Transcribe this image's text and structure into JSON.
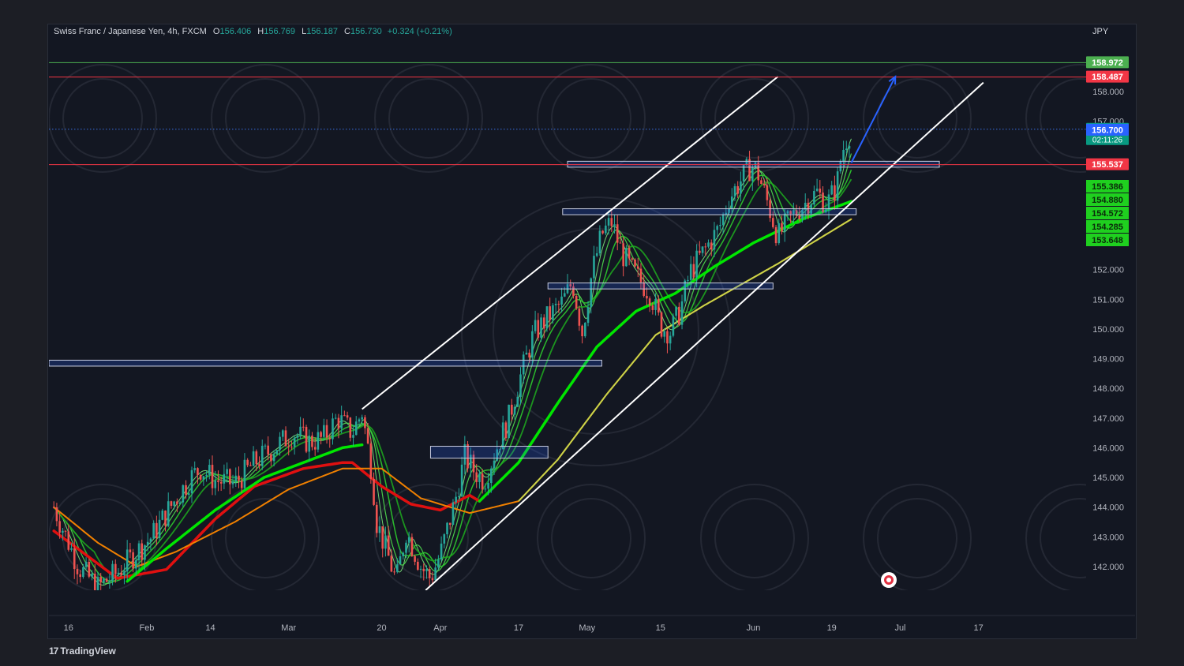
{
  "legend": {
    "symbol": "Swiss Franc / Japanese Yen, 4h, FXCM",
    "o_label": "O",
    "o_value": "156.406",
    "h_label": "H",
    "h_value": "156.769",
    "l_label": "L",
    "l_value": "156.187",
    "c_label": "C",
    "c_value": "156.730",
    "change": "+0.324 (+0.21%)"
  },
  "currency": "JPY",
  "branding": {
    "name": "TradingView",
    "mark": "17"
  },
  "colors": {
    "background": "#131722",
    "up": "#26a69a",
    "down": "#ef5350",
    "resistance": "#f23645",
    "target": "#4caf50",
    "current": "#2962ff",
    "ma_green": "#00e600",
    "ma_red": "#e01010",
    "ma_orange": "#f08000",
    "channel": "#ffffff"
  },
  "chart_data": {
    "type": "line",
    "title": "Swiss Franc / Japanese Yen, 4h, FXCM",
    "ylabel": "JPY",
    "ylim": [
      141.2,
      159.7
    ],
    "y_ticks": [
      "142.000",
      "143.000",
      "144.000",
      "145.000",
      "146.000",
      "147.000",
      "148.000",
      "149.000",
      "150.000",
      "151.000",
      "152.000",
      "157.000",
      "158.000"
    ],
    "x_ticks": [
      "16",
      "Feb",
      "14",
      "Mar",
      "20",
      "Apr",
      "17",
      "May",
      "15",
      "Jun",
      "19",
      "Jul",
      "17"
    ],
    "x_tick_days": [
      0,
      16,
      29,
      45,
      64,
      76,
      92,
      106,
      121,
      140,
      156,
      170,
      186
    ],
    "x_range_days": [
      -4,
      208
    ],
    "price_path": [
      [
        -3,
        144.0
      ],
      [
        2,
        142.0
      ],
      [
        6,
        141.3
      ],
      [
        10,
        141.8
      ],
      [
        14,
        142.5
      ],
      [
        17,
        143.0
      ],
      [
        20,
        143.8
      ],
      [
        22,
        144.3
      ],
      [
        25,
        145.0
      ],
      [
        27,
        145.3
      ],
      [
        30,
        144.9
      ],
      [
        34,
        144.8
      ],
      [
        38,
        145.5
      ],
      [
        42,
        146.0
      ],
      [
        46,
        146.5
      ],
      [
        49,
        146.2
      ],
      [
        52,
        146.3
      ],
      [
        55,
        147.0
      ],
      [
        58,
        146.5
      ],
      [
        60,
        147.2
      ],
      [
        62,
        145.2
      ],
      [
        63,
        143.5
      ],
      [
        65,
        142.5
      ],
      [
        67,
        141.5
      ],
      [
        69,
        143.2
      ],
      [
        72,
        142.0
      ],
      [
        74,
        141.6
      ],
      [
        76,
        142.4
      ],
      [
        79,
        144.2
      ],
      [
        81,
        145.7
      ],
      [
        83,
        145.2
      ],
      [
        85,
        144.9
      ],
      [
        87,
        145.8
      ],
      [
        90,
        147.0
      ],
      [
        92,
        148.2
      ],
      [
        95,
        149.8
      ],
      [
        98,
        150.4
      ],
      [
        101,
        150.9
      ],
      [
        103,
        151.6
      ],
      [
        105,
        149.9
      ],
      [
        107,
        151.9
      ],
      [
        109,
        153.2
      ],
      [
        111,
        153.6
      ],
      [
        113,
        152.6
      ],
      [
        115,
        152.0
      ],
      [
        117,
        151.6
      ],
      [
        119,
        151.2
      ],
      [
        121,
        150.1
      ],
      [
        123,
        149.9
      ],
      [
        125,
        150.6
      ],
      [
        127,
        151.9
      ],
      [
        129,
        152.4
      ],
      [
        131,
        152.9
      ],
      [
        133,
        153.4
      ],
      [
        135,
        154.4
      ],
      [
        137,
        154.9
      ],
      [
        139,
        155.4
      ],
      [
        140,
        155.5
      ],
      [
        141,
        155.2
      ],
      [
        143,
        154.2
      ],
      [
        145,
        153.1
      ],
      [
        147,
        153.6
      ],
      [
        149,
        154.0
      ],
      [
        151,
        154.3
      ],
      [
        153,
        154.6
      ],
      [
        155,
        154.2
      ],
      [
        157,
        154.8
      ],
      [
        158,
        155.9
      ],
      [
        159,
        156.4
      ],
      [
        160,
        156.73
      ]
    ],
    "series": [
      {
        "values": [
          [
            -3,
            143.2
          ],
          [
            10,
            141.6
          ],
          [
            20,
            141.9
          ],
          [
            30,
            143.6
          ],
          [
            38,
            144.7
          ],
          [
            48,
            145.3
          ],
          [
            56,
            145.5
          ],
          [
            58,
            145.5
          ],
          [
            64,
            144.7
          ],
          [
            70,
            144.1
          ],
          [
            76,
            143.9
          ],
          [
            82,
            144.4
          ],
          [
            84,
            144.2
          ]
        ]
      },
      {
        "values": [
          [
            -3,
            144.0
          ],
          [
            6,
            142.8
          ],
          [
            14,
            142.0
          ],
          [
            22,
            142.5
          ],
          [
            34,
            143.5
          ],
          [
            45,
            144.6
          ],
          [
            56,
            145.3
          ],
          [
            64,
            145.3
          ],
          [
            72,
            144.3
          ],
          [
            82,
            143.8
          ],
          [
            92,
            144.2
          ],
          [
            100,
            145.6
          ],
          [
            110,
            147.8
          ],
          [
            120,
            149.8
          ],
          [
            130,
            150.8
          ],
          [
            145,
            152.2
          ],
          [
            160,
            153.7
          ]
        ]
      },
      {
        "values": [
          [
            84,
            144.2
          ],
          [
            92,
            145.5
          ],
          [
            100,
            147.5
          ],
          [
            108,
            149.4
          ],
          [
            116,
            150.6
          ],
          [
            124,
            151.2
          ],
          [
            132,
            152.1
          ],
          [
            140,
            152.9
          ],
          [
            150,
            153.7
          ],
          [
            160,
            154.3
          ]
        ]
      },
      {
        "values": [
          [
            12,
            141.5
          ],
          [
            20,
            142.6
          ],
          [
            30,
            143.9
          ],
          [
            40,
            145.0
          ],
          [
            48,
            145.5
          ],
          [
            56,
            146.0
          ],
          [
            60,
            146.1
          ]
        ]
      }
    ],
    "levels": [
      {
        "price": 158.972,
        "label": "158.972",
        "color": "#4caf50",
        "style": "solid"
      },
      {
        "price": 158.487,
        "label": "158.487",
        "color": "#f23645",
        "style": "solid"
      },
      {
        "price": 156.73,
        "label": "156.730",
        "sublabel": "02:11:26",
        "color": "#089981",
        "style": "dotted"
      },
      {
        "price": 156.7,
        "label": "156.700",
        "color": "#2962ff",
        "style": "none"
      },
      {
        "price": 155.537,
        "label": "155.537",
        "color": "#f23645",
        "style": "solid"
      }
    ],
    "ma_tags": [
      {
        "price": 155.386,
        "label": "155.386"
      },
      {
        "price": 154.88,
        "label": "154.880"
      },
      {
        "price": 154.572,
        "label": "154.572"
      },
      {
        "price": 154.285,
        "label": "154.285"
      },
      {
        "price": 153.648,
        "label": "153.648"
      }
    ],
    "zones": [
      {
        "x1": 102,
        "x2": 178,
        "top": 155.65,
        "bottom": 155.45
      },
      {
        "x1": 101,
        "x2": 161,
        "top": 154.05,
        "bottom": 153.85
      },
      {
        "x1": 98,
        "x2": 144,
        "top": 151.55,
        "bottom": 151.35
      },
      {
        "x1": -4,
        "x2": 109,
        "top": 148.95,
        "bottom": 148.75
      },
      {
        "x1": 74,
        "x2": 98,
        "top": 146.05,
        "bottom": 145.65
      }
    ],
    "channel_lines": [
      {
        "from": [
          60,
          147.3
        ],
        "to": [
          145,
          158.5
        ]
      },
      {
        "from": [
          73,
          141.2
        ],
        "to": [
          187,
          158.3
        ]
      }
    ],
    "projection": {
      "from": [
        160,
        155.6
      ],
      "to": [
        169,
        158.5
      ]
    }
  }
}
